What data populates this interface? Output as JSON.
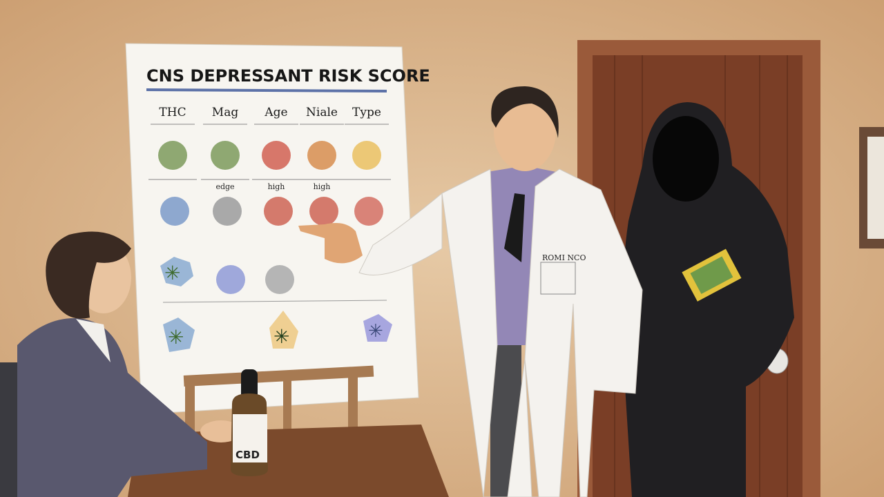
{
  "poster": {
    "title": "CNS DEPRESSANT RISK SCORE",
    "columns": [
      "THC",
      "Mag",
      "Age",
      "Niale",
      "Type"
    ],
    "row2_labels": [
      "",
      "edge",
      "high",
      "high",
      ""
    ],
    "row1_colors": [
      "#8fa872",
      "#8fa872",
      "#d7776a",
      "#dc9d67",
      "#ecc876"
    ],
    "row2_colors": [
      "#8ea8cf",
      "#a9a9a9",
      "#d47a6c",
      "#d47a6c",
      "#d98378"
    ],
    "row3_colors": [
      "#9fa8db",
      "#b5b5b5"
    ]
  },
  "bottle": {
    "label": "CBD"
  },
  "colors": {
    "wall": "#d8b48b",
    "door": "#7a3e26",
    "coat": "#f4f2ee",
    "hoodie": "#1e1d20",
    "table": "#7b4a2c"
  }
}
